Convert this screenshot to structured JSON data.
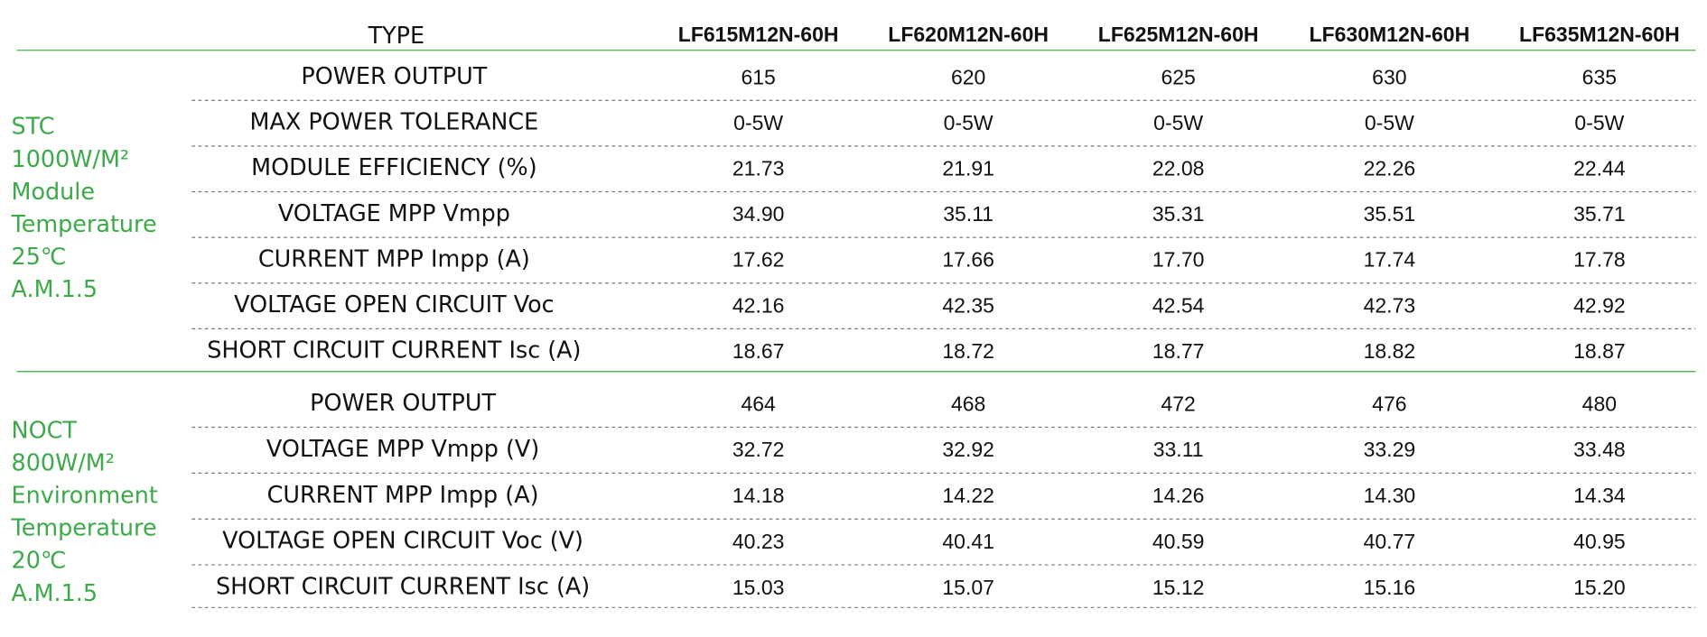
{
  "header": {
    "type_label": "TYPE",
    "models": [
      "LF615M12N-60H",
      "LF620M12N-60H",
      "LF625M12N-60H",
      "LF630M12N-60H",
      "LF635M12N-60H"
    ]
  },
  "sections": [
    {
      "label_lines": [
        "STC",
        "1000W/M²",
        "Module",
        "Temperature",
        "25℃",
        "A.M.1.5"
      ],
      "rows": [
        {
          "label": "POWER OUTPUT",
          "values": [
            "615",
            "620",
            "625",
            "630",
            "635"
          ]
        },
        {
          "label": "MAX POWER TOLERANCE",
          "values": [
            "0-5W",
            "0-5W",
            "0-5W",
            "0-5W",
            "0-5W"
          ]
        },
        {
          "label": "MODULE EFFICIENCY  (%)",
          "values": [
            "21.73",
            "21.91",
            "22.08",
            "22.26",
            "22.44"
          ]
        },
        {
          "label": "VOLTAGE MPP Vmpp",
          "values": [
            "34.90",
            "35.11",
            "35.31",
            "35.51",
            "35.71"
          ]
        },
        {
          "label": "CURRENT MPP Impp (A)",
          "values": [
            "17.62",
            "17.66",
            "17.70",
            "17.74",
            "17.78"
          ]
        },
        {
          "label": "VOLTAGE OPEN CIRCUIT Voc",
          "values": [
            "42.16",
            "42.35",
            "42.54",
            "42.73",
            "42.92"
          ]
        },
        {
          "label": "SHORT CIRCUIT CURRENT Isc  (A)",
          "values": [
            "18.67",
            "18.72",
            "18.77",
            "18.82",
            "18.87"
          ]
        }
      ]
    },
    {
      "label_lines": [
        "NOCT",
        "800W/M²",
        "Environment",
        "Temperature",
        "20℃",
        "A.M.1.5"
      ],
      "rows": [
        {
          "label": "POWER OUTPUT",
          "values": [
            "464",
            "468",
            "472",
            "476",
            "480"
          ]
        },
        {
          "label": "VOLTAGE MPP Vmpp (V)",
          "values": [
            "32.72",
            "32.92",
            "33.11",
            "33.29",
            "33.48"
          ]
        },
        {
          "label": "CURRENT MPP Impp (A)",
          "values": [
            "14.18",
            "14.22",
            "14.26",
            "14.30",
            "14.34"
          ]
        },
        {
          "label": "VOLTAGE OPEN CIRCUIT Voc (V)",
          "values": [
            "40.23",
            "40.41",
            "40.59",
            "40.77",
            "40.95"
          ]
        },
        {
          "label": "SHORT CIRCUIT CURRENT Isc (A)",
          "values": [
            "15.03",
            "15.07",
            "15.12",
            "15.16",
            "15.20"
          ]
        }
      ]
    }
  ]
}
